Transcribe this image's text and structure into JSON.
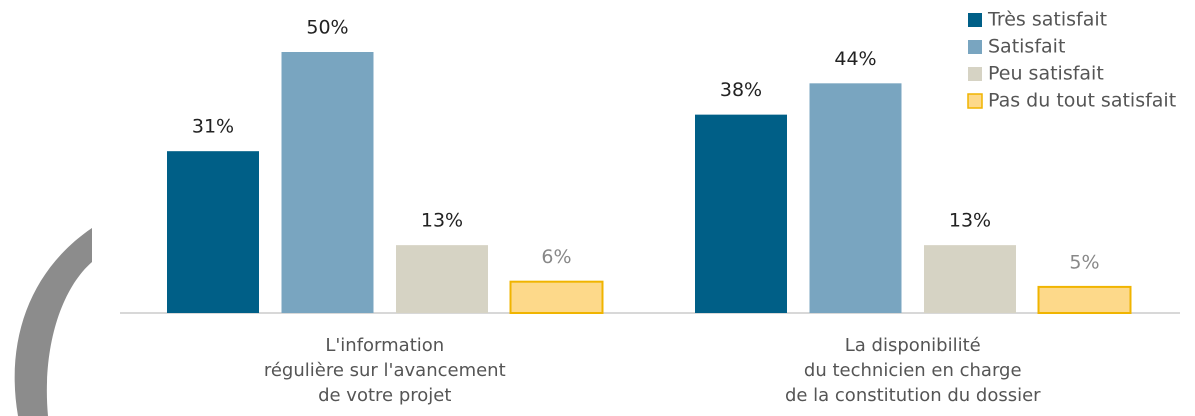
{
  "chart_data": {
    "type": "bar",
    "categories": [
      "L'information\nrégulière sur l'avancement\nde votre projet",
      "La disponibilité\ndu technicien en charge\nde la constitution du dossier"
    ],
    "series": [
      {
        "name": "Très satisfait",
        "color": "#005f87",
        "values": [
          31,
          38
        ],
        "value_labels": [
          "31%",
          "38%"
        ]
      },
      {
        "name": "Satisfait",
        "color": "#79a5c0",
        "values": [
          50,
          44
        ],
        "value_labels": [
          "50%",
          "44%"
        ]
      },
      {
        "name": "Peu satisfait",
        "color": "#d6d3c4",
        "values": [
          13,
          13
        ],
        "value_labels": [
          "13%",
          "13%"
        ]
      },
      {
        "name": "Pas du tout satisfait",
        "color": "#fdd98a",
        "values": [
          6,
          5
        ],
        "value_labels": [
          "6%",
          "5%"
        ]
      }
    ],
    "legend": "top-right"
  }
}
